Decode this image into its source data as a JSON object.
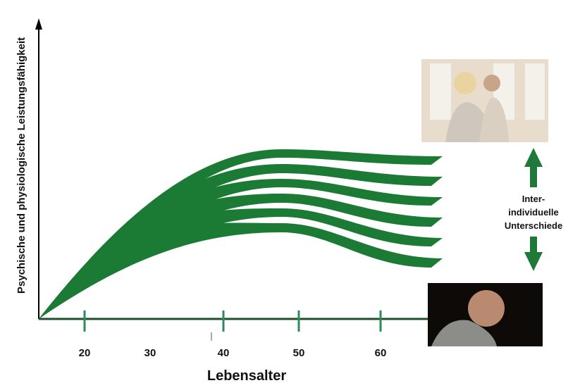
{
  "axis_labels": {
    "y": "Psychische und physiologische Leistungsfähigkeit",
    "x": "Lebensalter"
  },
  "x_ticks": [
    20,
    30,
    40,
    50,
    60
  ],
  "annotation": [
    "Inter-",
    "individuelle",
    "Unterschiede"
  ]
}
